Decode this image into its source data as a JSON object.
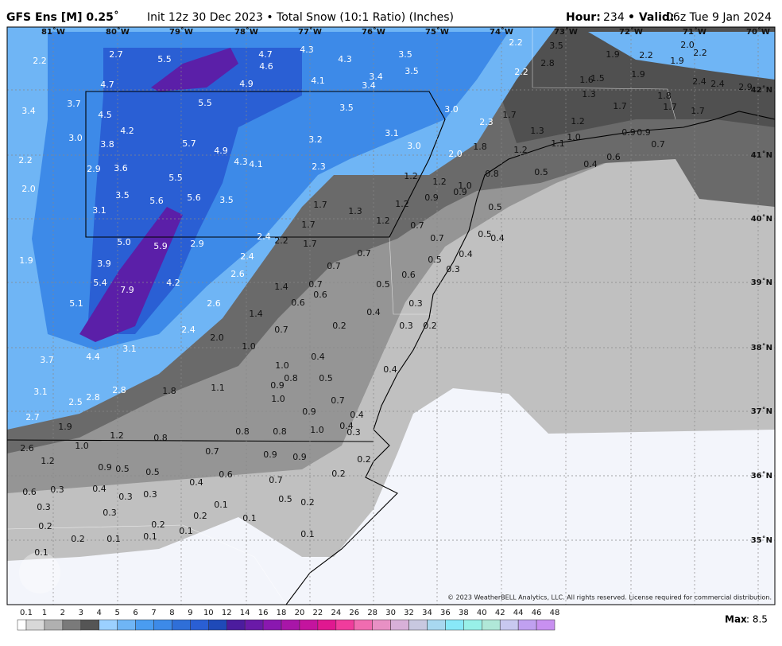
{
  "header": {
    "title": "GFS Ens [M] 0.25˚",
    "subtitle": "Init 12z 30 Dec 2023 • Total Snow (10:1 Ratio) (Inches)",
    "hour_label": "Hour:",
    "hour_value": "234",
    "valid_label": "• Valid:",
    "valid_value": "06z Tue 9 Jan 2024"
  },
  "lon_labels": [
    "81˚W",
    "80˚W",
    "79˚W",
    "78˚W",
    "77˚W",
    "76˚W",
    "75˚W",
    "74˚W",
    "73˚W",
    "72˚W",
    "71˚W",
    "70˚W"
  ],
  "lat_labels": [
    "42˚N",
    "41˚N",
    "40˚N",
    "39˚N",
    "38˚N",
    "37˚N",
    "36˚N",
    "35˚N"
  ],
  "map_labels": [
    "2.2",
    "2.7",
    "5.5",
    "4.7",
    "4.3",
    "4.6",
    "4.3",
    "3.5",
    "3.5",
    "4.7",
    "4.9",
    "4.1",
    "3.4",
    "3.4",
    "2.2",
    "3.5",
    "2.8",
    "2.2",
    "1.9",
    "2.2",
    "2.0",
    "2.2",
    "1.9",
    "1.9",
    "1.6",
    "1.5",
    "2.4",
    "2.4",
    "2.9",
    "3.7",
    "3.4",
    "5.5",
    "3.5",
    "3.0",
    "1.3",
    "1.8",
    "1.7",
    "1.7",
    "1.7",
    "4.5",
    "4.2",
    "1.7",
    "2.3",
    "1.2",
    "1.3",
    "3.0",
    "5.7",
    "3.2",
    "3.1",
    "3.0",
    "3.8",
    "4.9",
    "1.0",
    "1.1",
    "0.9",
    "0.9",
    "0.7",
    "1.8",
    "1.2",
    "2.0",
    "2.2",
    "4.3",
    "4.1",
    "2.3",
    "2.9",
    "3.6",
    "0.5",
    "0.4",
    "0.6",
    "0.8",
    "1.2",
    "1.2",
    "5.5",
    "2.0",
    "1.0",
    "0.9",
    "0.9",
    "3.5",
    "5.6",
    "3.5",
    "5.6",
    "1.7",
    "1.3",
    "1.2",
    "3.1",
    "0.5",
    "1.2",
    "1.7",
    "0.7",
    "0.7",
    "0.5",
    "0.4",
    "2.4",
    "2.2",
    "2.9",
    "5.0",
    "5.9",
    "1.7",
    "2.4",
    "0.4",
    "0.5",
    "3.9",
    "1.9",
    "0.7",
    "0.7",
    "0.3",
    "2.6",
    "0.6",
    "4.2",
    "5.4",
    "7.9",
    "1.4",
    "0.7",
    "0.5",
    "5.1",
    "2.6",
    "0.6",
    "0.6",
    "0.3",
    "0.4",
    "1.4",
    "2.4",
    "0.7",
    "0.2",
    "0.3",
    "0.2",
    "2.0",
    "1.0",
    "3.1",
    "4.4",
    "3.7",
    "0.4",
    "0.4",
    "1.0",
    "0.8",
    "0.5",
    "0.9",
    "3.1",
    "2.8",
    "2.8",
    "2.5",
    "1.8",
    "1.1",
    "1.0",
    "0.7",
    "0.9",
    "0.4",
    "2.7",
    "0.4",
    "1.9",
    "1.2",
    "0.8",
    "0.8",
    "0.8",
    "1.0",
    "0.3",
    "1.0",
    "2.6",
    "0.7",
    "0.9",
    "0.9",
    "0.2",
    "1.2",
    "0.9",
    "0.5",
    "0.5",
    "0.6",
    "0.2",
    "0.4",
    "0.7",
    "0.4",
    "0.6",
    "0.3",
    "0.3",
    "0.3",
    "0.5",
    "0.2",
    "0.3",
    "0.1",
    "0.3",
    "0.2",
    "0.1",
    "0.2",
    "0.2",
    "0.1",
    "0.2",
    "0.1",
    "0.1",
    "0.1",
    "0.1"
  ],
  "colorbar_labels": [
    "0.1",
    "1",
    "2",
    "3",
    "4",
    "5",
    "6",
    "7",
    "8",
    "9",
    "10",
    "12",
    "14",
    "16",
    "18",
    "20",
    "22",
    "24",
    "26",
    "28",
    "30",
    "32",
    "34",
    "36",
    "38",
    "40",
    "42",
    "44",
    "46",
    "48"
  ],
  "footer": {
    "max_label": "Max",
    "max_value": ": 8.5",
    "copyright": "© 2023 WeatherBELL Analytics, LLC. All rights reserved. License required for commercial distribution."
  }
}
